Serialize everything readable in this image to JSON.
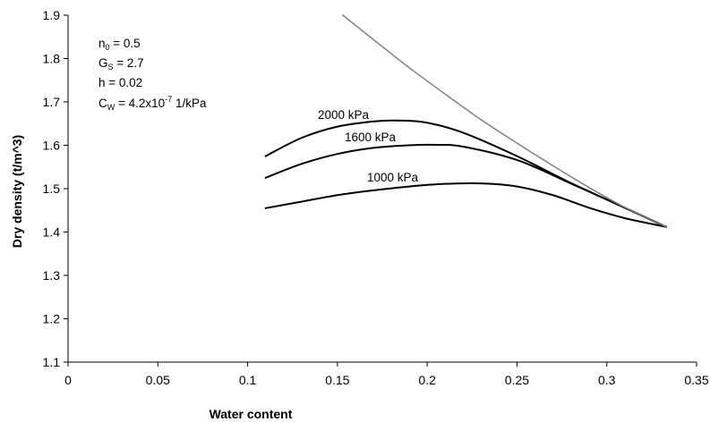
{
  "chart_data": {
    "type": "line",
    "title": "",
    "xlabel": "Water content",
    "ylabel": "Dry density (t/m^3)",
    "xlim": [
      0,
      0.35
    ],
    "ylim": [
      1.1,
      1.9
    ],
    "x_ticks": [
      0,
      0.05,
      0.1,
      0.15,
      0.2,
      0.25,
      0.3,
      0.35
    ],
    "x_tick_labels": [
      "0",
      "0.05",
      "0.1",
      "0.15",
      "0.2",
      "0.25",
      "0.3",
      "0.35"
    ],
    "y_ticks": [
      1.1,
      1.2,
      1.3,
      1.4,
      1.5,
      1.6,
      1.7,
      1.8,
      1.9
    ],
    "y_tick_labels": [
      "1.1",
      "1.2",
      "1.3",
      "1.4",
      "1.5",
      "1.6",
      "1.7",
      "1.8",
      "1.9"
    ],
    "grid": false,
    "legend": "none",
    "annotations": {
      "n0": {
        "main": "n",
        "sub": "0",
        "rest": " = 0.5"
      },
      "gs": {
        "main": "G",
        "sub": "S",
        "rest": " = 2.7"
      },
      "h": {
        "text": "h = 0.02"
      },
      "cw": {
        "main": "C",
        "sub": "W",
        "mid": " = 4.2x10",
        "sup": "-7",
        "rest": " 1/kPa"
      }
    },
    "series": [
      {
        "label": "2000 kPa",
        "color": "#000000",
        "x": [
          0.11,
          0.13,
          0.15,
          0.17,
          0.185,
          0.2,
          0.22,
          0.25,
          0.28,
          0.31,
          0.333
        ],
        "y": [
          1.575,
          1.617,
          1.643,
          1.655,
          1.657,
          1.652,
          1.629,
          1.575,
          1.513,
          1.456,
          1.412
        ]
      },
      {
        "label": "1600 kPa",
        "color": "#000000",
        "x": [
          0.11,
          0.13,
          0.15,
          0.17,
          0.19,
          0.205,
          0.22,
          0.25,
          0.28,
          0.31,
          0.333
        ],
        "y": [
          1.525,
          1.557,
          1.58,
          1.594,
          1.6,
          1.601,
          1.597,
          1.566,
          1.512,
          1.456,
          1.412
        ]
      },
      {
        "label": "1000 kPa",
        "color": "#000000",
        "x": [
          0.11,
          0.13,
          0.15,
          0.17,
          0.19,
          0.21,
          0.23,
          0.25,
          0.27,
          0.29,
          0.31,
          0.333
        ],
        "y": [
          1.455,
          1.47,
          1.485,
          1.496,
          1.505,
          1.511,
          1.512,
          1.505,
          1.485,
          1.456,
          1.432,
          1.412
        ]
      },
      {
        "label": "",
        "color": "#808080",
        "x": [
          0.153,
          0.17,
          0.19,
          0.21,
          0.23,
          0.25,
          0.27,
          0.29,
          0.31,
          0.333
        ],
        "y": [
          1.9,
          1.844,
          1.779,
          1.718,
          1.659,
          1.605,
          1.553,
          1.503,
          1.457,
          1.412
        ]
      }
    ]
  }
}
